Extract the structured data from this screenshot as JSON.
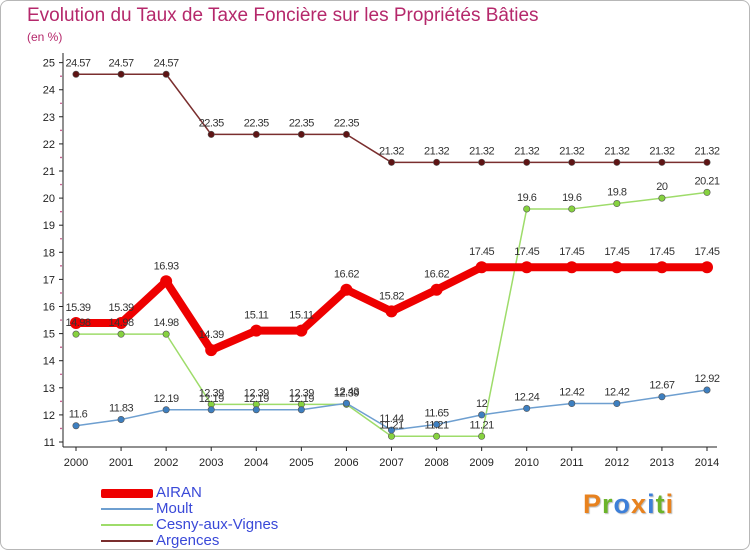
{
  "chart_data": {
    "type": "line",
    "title": "Evolution du Taux de Taxe Foncière sur les Propriétés Bâties",
    "unit_label": "(en %)",
    "x": [
      "2000",
      "2001",
      "2002",
      "2003",
      "2004",
      "2005",
      "2006",
      "2007",
      "2008",
      "2009",
      "2010",
      "2011",
      "2012",
      "2013",
      "2014"
    ],
    "ylim": [
      11,
      25
    ],
    "yticks": [
      "11",
      "12",
      "13",
      "14",
      "15",
      "16",
      "17",
      "18",
      "19",
      "20",
      "21",
      "22",
      "23",
      "24",
      "25"
    ],
    "series": [
      {
        "name": "AIRAN",
        "color": "#ee0000",
        "marker": "#ee0000",
        "values": [
          15.39,
          15.39,
          16.93,
          14.39,
          15.11,
          15.11,
          16.62,
          15.82,
          16.62,
          17.45,
          17.45,
          17.45,
          17.45,
          17.45,
          17.45
        ],
        "labels": [
          "15.39",
          "15.39",
          "16.93",
          "14.39",
          "15.11",
          "15.11",
          "16.62",
          "15.82",
          "16.62",
          "17.45",
          "17.45",
          "17.45",
          "17.45",
          "17.45",
          "17.45"
        ]
      },
      {
        "name": "Moult",
        "color": "#6e9fd0",
        "marker": "#3d7fc0",
        "values": [
          11.6,
          11.83,
          12.19,
          12.19,
          12.19,
          12.19,
          12.43,
          11.44,
          11.65,
          12.0,
          12.24,
          12.42,
          12.42,
          12.67,
          12.92
        ],
        "labels": [
          "11.6",
          "11.83",
          "12.19",
          "12.19",
          "12.19",
          "12.19",
          "12.43",
          "11.44",
          "11.65",
          "12",
          "12.24",
          "12.42",
          "12.42",
          "12.67",
          "12.92"
        ]
      },
      {
        "name": "Cesny-aux-Vignes",
        "color": "#9edc6a",
        "marker": "#86d23f",
        "values": [
          14.98,
          14.98,
          14.98,
          12.39,
          12.39,
          12.39,
          12.39,
          11.21,
          11.21,
          11.21,
          19.6,
          19.6,
          19.8,
          20.0,
          20.21
        ],
        "labels": [
          "14.98",
          "14.98",
          "14.98",
          "12.39",
          "12.39",
          "12.39",
          "12.39",
          "11.21",
          "11.21",
          "11.21",
          "19.6",
          "19.6",
          "19.8",
          "20",
          "20.21"
        ]
      },
      {
        "name": "Argences",
        "color": "#7a2e2e",
        "marker": "#5e1414",
        "values": [
          24.57,
          24.57,
          24.57,
          22.35,
          22.35,
          22.35,
          22.35,
          21.32,
          21.32,
          21.32,
          21.32,
          21.32,
          21.32,
          21.32,
          21.32
        ],
        "labels": [
          "24.57",
          "24.57",
          "24.57",
          "22.35",
          "22.35",
          "22.35",
          "22.35",
          "21.32",
          "21.32",
          "21.32",
          "21.32",
          "21.32",
          "21.32",
          "21.32",
          "21.32"
        ]
      }
    ],
    "legend_position": "bottom-left"
  },
  "logo": {
    "text": "Proxiti",
    "letter_colors": [
      "#e8821e",
      "#6bb42a",
      "#3d7fd8",
      "#e8821e",
      "#3d7fd8",
      "#6bb42a",
      "#e8821e"
    ]
  }
}
